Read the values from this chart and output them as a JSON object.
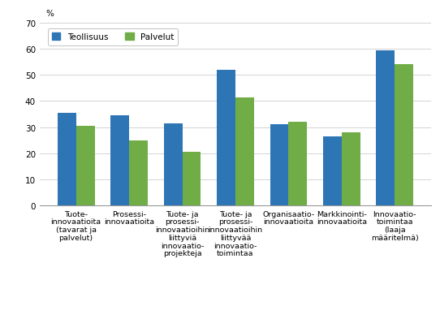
{
  "categories": [
    "Tuote-\ninnovaatioita\n(tavarat ja\npalvelut)",
    "Prosessi-\ninnovaatioita",
    "Tuote- ja\nprosessi-\ninnovaatioihin\nliittyviä\ninnovaatio-\nprojekteja",
    "Tuote- ja\nprosessi-\ninnovaatioihin\nliittyvää\ninnovaatio-\ntoimintaa",
    "Organisaatio-\ninnovaatioita",
    "Markkinointi-\ninnovaatioita",
    "Innovaatio-\ntoimintaa\n(laaja\nmääritelmä)"
  ],
  "teollisuus": [
    35.5,
    34.5,
    31.5,
    52.0,
    31.0,
    26.5,
    59.5
  ],
  "palvelut": [
    30.5,
    25.0,
    20.5,
    41.5,
    32.0,
    28.0,
    54.0
  ],
  "teollisuus_color": "#2E75B6",
  "palvelut_color": "#70AD47",
  "percent_label": "%",
  "ylim": [
    0,
    70
  ],
  "yticks": [
    0,
    10,
    20,
    30,
    40,
    50,
    60,
    70
  ],
  "legend_teollisuus": "Teollisuus",
  "legend_palvelut": "Palvelut",
  "bar_width": 0.35,
  "tick_fontsize": 7.5,
  "label_fontsize": 6.8
}
